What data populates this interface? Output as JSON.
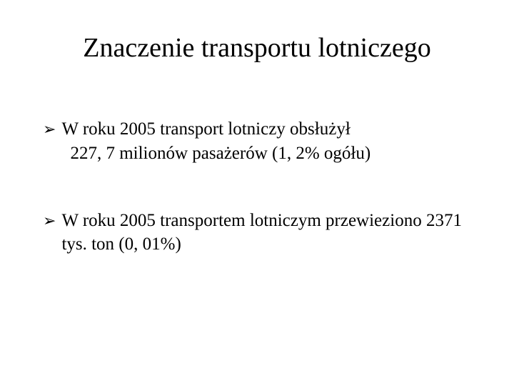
{
  "slide": {
    "title": "Znaczenie transportu lotniczego",
    "title_fontsize": 38,
    "title_color": "#000000",
    "background_color": "#ffffff",
    "text_color": "#000000",
    "font_family": "Times New Roman",
    "body_fontsize": 25,
    "bullets": [
      {
        "marker": "➢",
        "line1": "W roku 2005 transport lotniczy obsłużył",
        "line2": "227, 7 milionów pasażerów (1, 2% ogółu)"
      },
      {
        "marker": "➢",
        "line1": "W roku 2005 transportem lotniczym przewieziono 2371 tys. ton (0, 01%)",
        "line2": ""
      }
    ]
  }
}
